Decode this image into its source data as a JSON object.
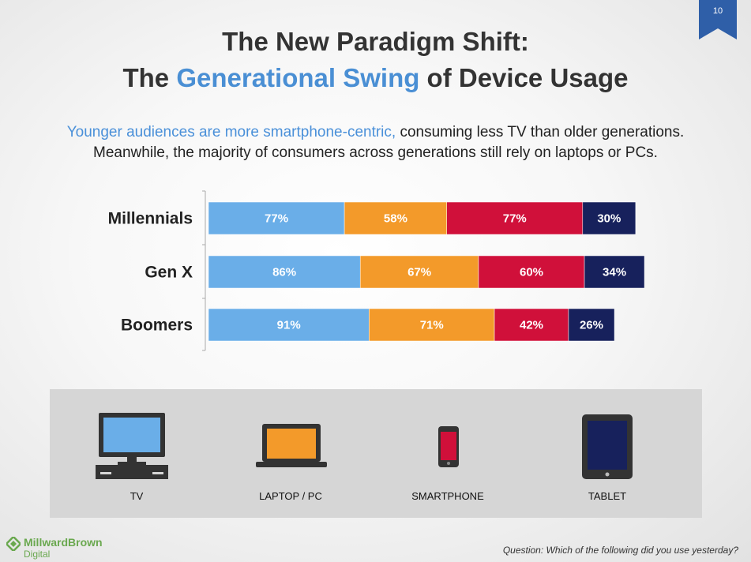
{
  "slide": {
    "page_number": "10",
    "title_line1": "The New Paradigm Shift:",
    "title_line2_pre": "The ",
    "title_line2_accent": "Generational Swing",
    "title_line2_post": " of Device Usage",
    "subtitle_accent": "Younger audiences are more smartphone-centric,",
    "subtitle_rest1": " consuming less TV than older generations.",
    "subtitle_line2": "Meanwhile, the majority of consumers across generations still rely on laptops or PCs.",
    "footer": "Question:  Which of the following did you use yesterday?",
    "logo_line1": "MillwardBrown",
    "logo_line2": "Digital"
  },
  "legend": [
    {
      "label": "TV",
      "icon": "tv-icon",
      "color": "#6aaee8"
    },
    {
      "label": "LAPTOP / PC",
      "icon": "laptop-icon",
      "color": "#f39a2a"
    },
    {
      "label": "SMARTPHONE",
      "icon": "smartphone-icon",
      "color": "#d0103a"
    },
    {
      "label": "TABLET",
      "icon": "tablet-icon",
      "color": "#17215c"
    }
  ],
  "colors": {
    "tv": "#6aaee8",
    "laptop": "#f39a2a",
    "smartphone": "#d0103a",
    "tablet": "#17215c",
    "accent": "#4a8fd4"
  },
  "chart_data": {
    "type": "bar",
    "orientation": "horizontal",
    "stacked": true,
    "categories": [
      "Millennials",
      "Gen X",
      "Boomers"
    ],
    "series": [
      {
        "name": "TV",
        "values": [
          77,
          86,
          91
        ],
        "labels": [
          "77%",
          "86%",
          "91%"
        ]
      },
      {
        "name": "LAPTOP / PC",
        "values": [
          58,
          67,
          71
        ],
        "labels": [
          "58%",
          "67%",
          "71%"
        ]
      },
      {
        "name": "SMARTPHONE",
        "values": [
          77,
          60,
          42
        ],
        "labels": [
          "77%",
          "60%",
          "42%"
        ]
      },
      {
        "name": "TABLET",
        "values": [
          30,
          34,
          26
        ],
        "labels": [
          "30%",
          "34%",
          "26%"
        ]
      }
    ],
    "legend_position": "bottom",
    "grid": false
  }
}
